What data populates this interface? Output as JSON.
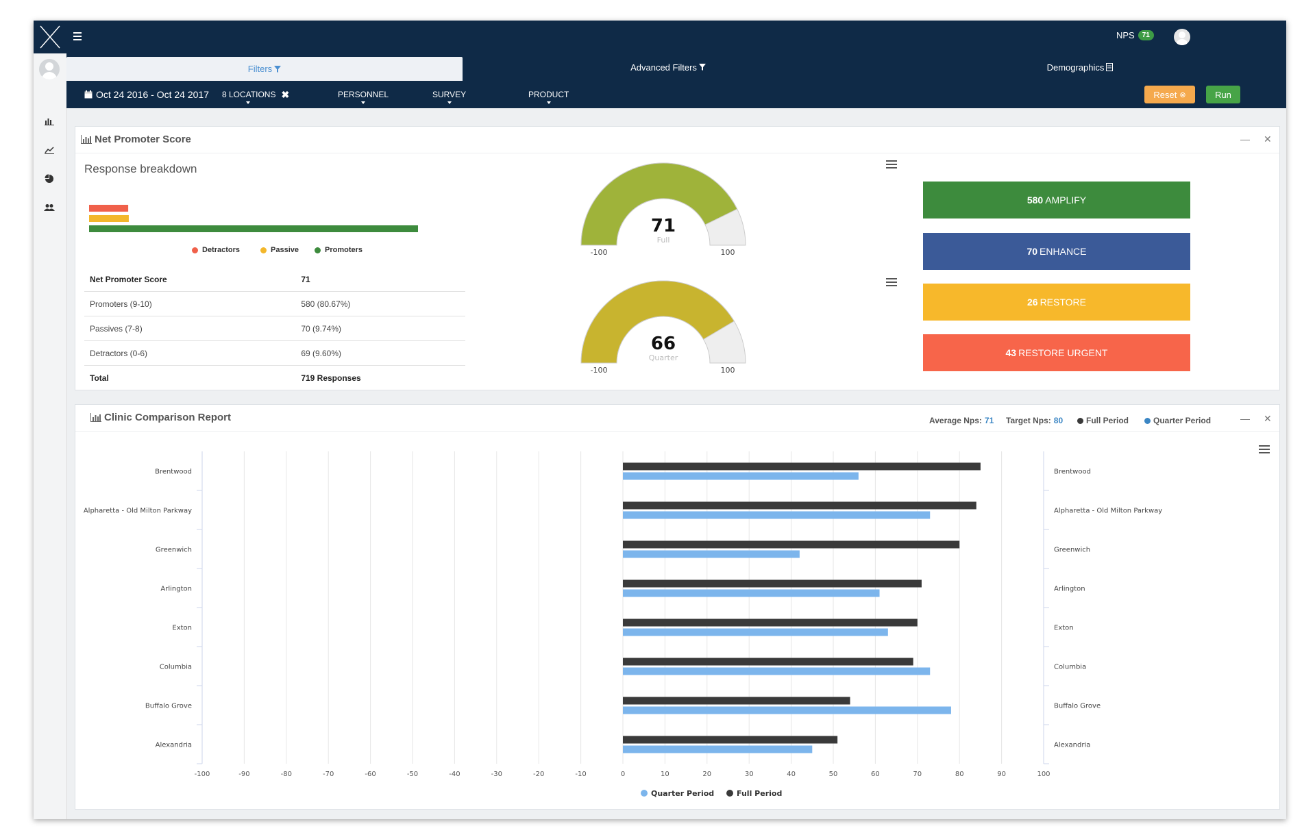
{
  "topbar": {
    "nps_label": "NPS",
    "nps_value": "71"
  },
  "tabs": [
    {
      "label": "Filters"
    },
    {
      "label": "Advanced Filters"
    },
    {
      "label": "Demographics"
    }
  ],
  "filterbar": {
    "date_range": "Oct 24 2016 - Oct 24 2017",
    "locations": "8 LOCATIONS",
    "personnel": "PERSONNEL",
    "survey": "SURVEY",
    "product": "PRODUCT",
    "reset_label": "Reset",
    "run_label": "Run"
  },
  "nps_panel": {
    "title": "Net Promoter Score",
    "subtitle": "Response breakdown",
    "legend": [
      "Detractors",
      "Passive",
      "Promoters"
    ],
    "table": [
      {
        "label": "Net Promoter Score",
        "value": "71"
      },
      {
        "label": "Promoters (9-10)",
        "value": "580 (80.67%)"
      },
      {
        "label": "Passives (7-8)",
        "value": "70 (9.74%)"
      },
      {
        "label": "Detractors (0-6)",
        "value": "69 (9.60%)"
      },
      {
        "label": "Total",
        "value": "719 Responses"
      }
    ],
    "gauges": [
      {
        "value": "71",
        "label": "Full",
        "min": "-100",
        "max": "100",
        "color": "#9fb33a"
      },
      {
        "value": "66",
        "label": "Quarter",
        "min": "-100",
        "max": "100",
        "color": "#c8b42f"
      }
    ],
    "actions": [
      {
        "count": "580",
        "label": "AMPLIFY",
        "color": "#3d8b3d"
      },
      {
        "count": "70",
        "label": "ENHANCE",
        "color": "#3b5a98"
      },
      {
        "count": "26",
        "label": "RESTORE",
        "color": "#f7b82b"
      },
      {
        "count": "43",
        "label": "RESTORE URGENT",
        "color": "#f7654a"
      }
    ]
  },
  "breakdown_bars": {
    "detractors": 69,
    "passive": 70,
    "promoters": 580
  },
  "comparison_panel": {
    "title": "Clinic Comparison Report",
    "average_label": "Average Nps:",
    "average_value": "71",
    "target_label": "Target Nps:",
    "target_value": "80",
    "legend_full": "Full Period",
    "legend_quarter": "Quarter Period"
  },
  "colors": {
    "navy": "#0f2a47",
    "full_period": "#3a3a3a",
    "quarter_period": "#7cb5ec",
    "detractor": "#f0604a",
    "passive": "#f3b72b",
    "promoter": "#3d8b3d"
  },
  "chart_data": {
    "type": "bar",
    "categories": [
      "Brentwood",
      "Alpharetta - Old Milton Parkway",
      "Greenwich",
      "Arlington",
      "Exton",
      "Columbia",
      "Buffalo Grove",
      "Alexandria"
    ],
    "series": [
      {
        "name": "Full Period",
        "values": [
          85,
          84,
          80,
          71,
          70,
          69,
          54,
          51
        ]
      },
      {
        "name": "Quarter Period",
        "values": [
          56,
          73,
          42,
          61,
          63,
          73,
          78,
          45
        ]
      }
    ],
    "xlim": [
      -100,
      100
    ],
    "xticks": [
      -100,
      -90,
      -80,
      -70,
      -60,
      -50,
      -40,
      -30,
      -20,
      -10,
      0,
      10,
      20,
      30,
      40,
      50,
      60,
      70,
      80,
      90,
      100
    ],
    "orientation": "horizontal",
    "legend_position": "bottom-center",
    "grid": true
  }
}
